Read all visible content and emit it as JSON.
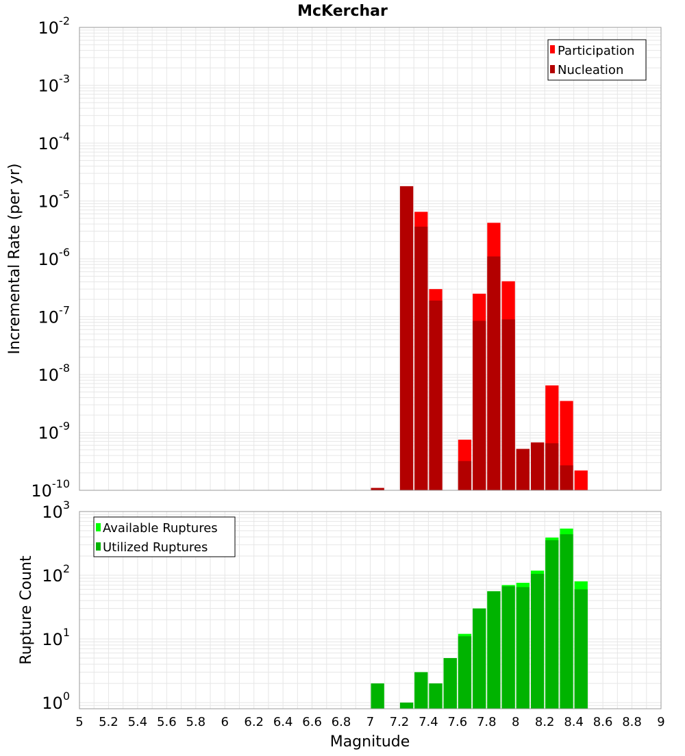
{
  "title": "McKerchar",
  "xlabel": "Magnitude",
  "x_ticks": [
    "5",
    "5.2",
    "5.4",
    "5.6",
    "5.8",
    "6",
    "6.2",
    "6.4",
    "6.6",
    "6.8",
    "7",
    "7.2",
    "7.4",
    "7.6",
    "7.8",
    "8",
    "8.2",
    "8.4",
    "8.6",
    "8.8",
    "9"
  ],
  "colors": {
    "participation": "#ff0000",
    "nucleation": "#b30000",
    "available": "#00ff00",
    "utilized": "#00b300",
    "grid": "#e6e6e6",
    "axis": "#999999"
  },
  "chart_data": [
    {
      "type": "bar",
      "ylabel": "Incremental Rate (per yr)",
      "y_scale": "log",
      "ylim": [
        1e-10,
        0.01
      ],
      "xlim": [
        5,
        9
      ],
      "y_ticks": [
        {
          "base": "10",
          "exp": "-2"
        },
        {
          "base": "10",
          "exp": "-3"
        },
        {
          "base": "10",
          "exp": "-4"
        },
        {
          "base": "10",
          "exp": "-5"
        },
        {
          "base": "10",
          "exp": "-6"
        },
        {
          "base": "10",
          "exp": "-7"
        },
        {
          "base": "10",
          "exp": "-8"
        },
        {
          "base": "10",
          "exp": "-9"
        },
        {
          "base": "10",
          "exp": "-10"
        }
      ],
      "legend_position": "top-right",
      "x": [
        7.05,
        7.25,
        7.35,
        7.45,
        7.65,
        7.75,
        7.85,
        7.95,
        8.05,
        8.15,
        8.25,
        8.35,
        8.45
      ],
      "series": [
        {
          "name": "Participation",
          "values": [
            1.1e-10,
            1.8e-05,
            6.5e-06,
            3e-07,
            7.5e-10,
            2.5e-07,
            4.2e-06,
            4.1e-07,
            5.2e-10,
            6.7e-10,
            6.5e-09,
            3.5e-09,
            2.2e-10
          ]
        },
        {
          "name": "Nucleation",
          "values": [
            1.1e-10,
            1.8e-05,
            3.6e-06,
            1.9e-07,
            3.2e-10,
            8.5e-08,
            1.1e-06,
            9e-08,
            5.2e-10,
            6.7e-10,
            6.5e-10,
            2.7e-10,
            null
          ]
        }
      ]
    },
    {
      "type": "bar",
      "ylabel": "Rupture Count",
      "y_scale": "log",
      "ylim": [
        0.8,
        1000
      ],
      "xlim": [
        5,
        9
      ],
      "y_ticks": [
        {
          "base": "10",
          "exp": "3"
        },
        {
          "base": "10",
          "exp": "2"
        },
        {
          "base": "10",
          "exp": "1"
        },
        {
          "base": "10",
          "exp": "0"
        }
      ],
      "legend_position": "top-left",
      "x": [
        7.05,
        7.25,
        7.35,
        7.45,
        7.55,
        7.65,
        7.75,
        7.85,
        7.95,
        8.05,
        8.15,
        8.25,
        8.35,
        8.45
      ],
      "series": [
        {
          "name": "Available Ruptures",
          "values": [
            2,
            1,
            3,
            2,
            5,
            12,
            30,
            56,
            70,
            76,
            118,
            390,
            540,
            80
          ]
        },
        {
          "name": "Utilized Ruptures",
          "values": [
            2,
            1,
            3,
            2,
            5,
            11,
            30,
            56,
            67,
            65,
            105,
            355,
            440,
            60
          ]
        }
      ]
    }
  ]
}
